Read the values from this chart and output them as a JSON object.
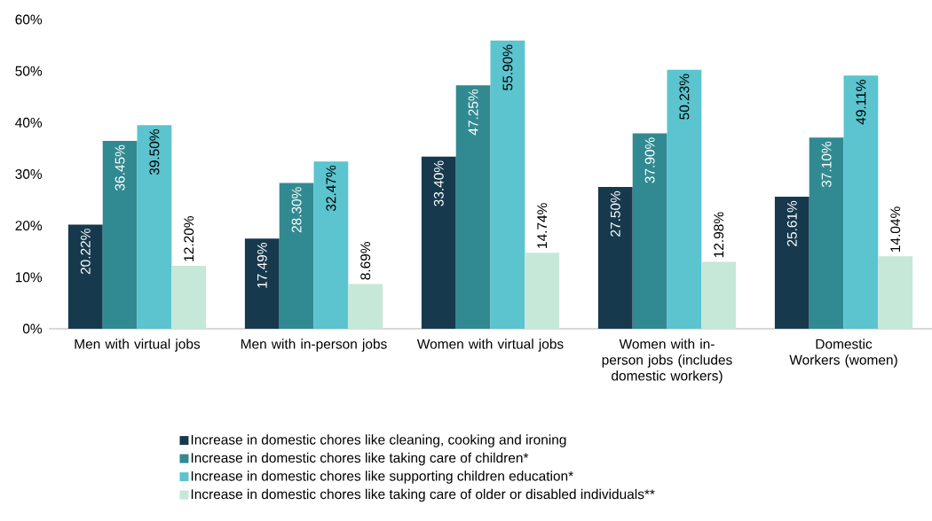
{
  "chart_data": {
    "type": "bar",
    "categories": [
      "Men with virtual jobs",
      "Men with in-person jobs",
      "Women with virtual jobs",
      "Women with in-person jobs (includes domestic workers)",
      "Domestic Workers (women)"
    ],
    "series": [
      {
        "name": "Increase in domestic chores like cleaning, cooking and ironing",
        "color": "#17394d",
        "values": [
          20.22,
          17.49,
          33.4,
          27.5,
          25.61
        ],
        "value_labels": [
          "20.22%",
          "17.49%",
          "33.40%",
          "27.50%",
          "25.61%"
        ]
      },
      {
        "name": "Increase in domestic chores like taking care of children*",
        "color": "#318a91",
        "values": [
          36.45,
          28.3,
          47.25,
          37.9,
          37.1
        ],
        "value_labels": [
          "36.45%",
          "28.30%",
          "47.25%",
          "37.90%",
          "37.10%"
        ]
      },
      {
        "name": "Increase in domestic chores like supporting children education*",
        "color": "#5bc4cf",
        "values": [
          39.5,
          32.47,
          55.9,
          50.23,
          49.11
        ],
        "value_labels": [
          "39.50%",
          "32.47%",
          "55.90%",
          "50.23%",
          "49.11%"
        ]
      },
      {
        "name": "Increase in domestic chores like taking care of older or disabled individuals**",
        "color": "#c5e8d9",
        "values": [
          12.2,
          8.69,
          14.74,
          12.98,
          14.04
        ],
        "value_labels": [
          "12.20%",
          "8.69%",
          "14.74%",
          "12.98%",
          "14.04%"
        ]
      }
    ],
    "ylim": [
      0,
      60
    ],
    "yticks": [
      {
        "value": 0,
        "label": "0%"
      },
      {
        "value": 10,
        "label": "10%"
      },
      {
        "value": 20,
        "label": "20%"
      },
      {
        "value": 30,
        "label": "30%"
      },
      {
        "value": 40,
        "label": "40%"
      },
      {
        "value": 50,
        "label": "50%"
      },
      {
        "value": 60,
        "label": "60%"
      }
    ],
    "grid": false,
    "legend": "bottom"
  }
}
